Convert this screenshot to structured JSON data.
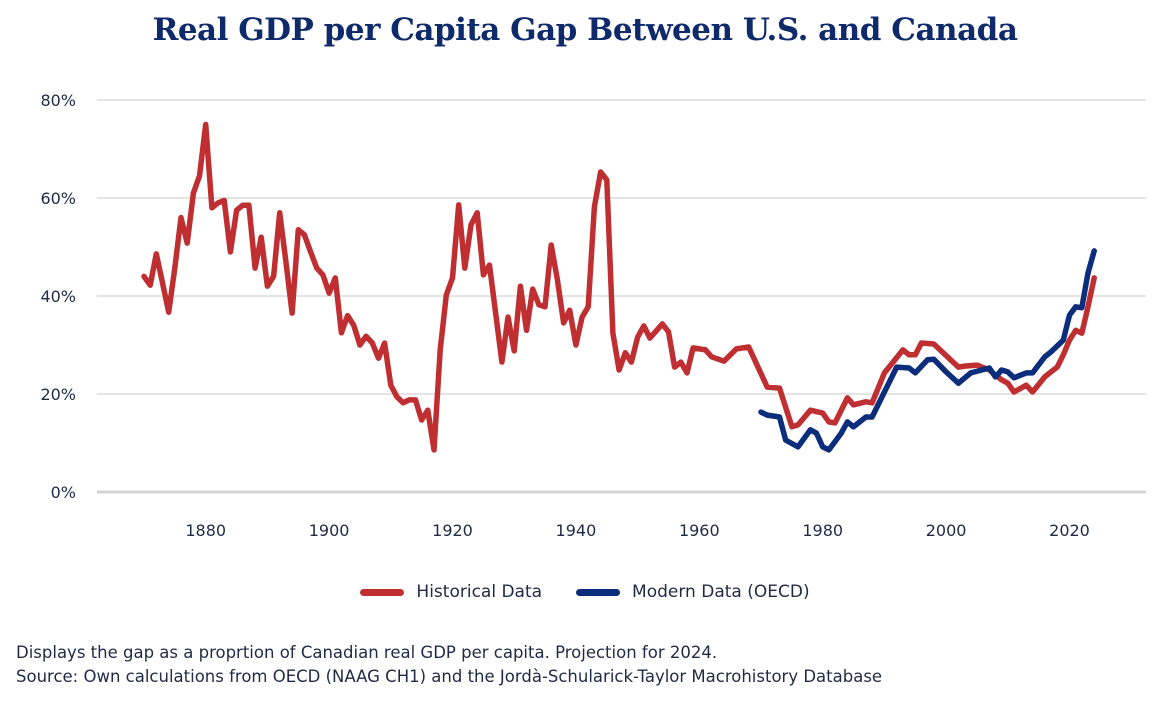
{
  "chart_data": {
    "type": "line",
    "title": "Real GDP per Capita Gap Between U.S. and Canada",
    "xlabel": "",
    "ylabel": "",
    "xlim": [
      1866,
      2032
    ],
    "ylim": [
      0,
      80
    ],
    "x_ticks": [
      "1880",
      "1900",
      "1920",
      "1940",
      "1960",
      "1980",
      "2000",
      "2020"
    ],
    "x_tick_values": [
      1880,
      1900,
      1920,
      1940,
      1960,
      1980,
      2000,
      2020
    ],
    "y_ticks": [
      "0%",
      "20%",
      "40%",
      "60%",
      "80%"
    ],
    "y_tick_values": [
      0,
      20,
      40,
      60,
      80
    ],
    "grid": "horizontal",
    "legend_position": "bottom-center",
    "series": [
      {
        "name": "Historical Data",
        "color": "#bf2f32",
        "x": [
          1870,
          1871,
          1872,
          1873,
          1874,
          1875,
          1876,
          1877,
          1878,
          1879,
          1880,
          1881,
          1882,
          1883,
          1884,
          1885,
          1886,
          1887,
          1888,
          1889,
          1890,
          1891,
          1892,
          1893,
          1894,
          1895,
          1896,
          1897,
          1898,
          1899,
          1900,
          1901,
          1902,
          1903,
          1904,
          1905,
          1906,
          1907,
          1908,
          1909,
          1910,
          1911,
          1912,
          1913,
          1914,
          1915,
          1916,
          1917,
          1918,
          1919,
          1920,
          1921,
          1922,
          1923,
          1924,
          1925,
          1926,
          1928,
          1929,
          1930,
          1931,
          1932,
          1933,
          1934,
          1935,
          1936,
          1937,
          1938,
          1939,
          1940,
          1941,
          1942,
          1943,
          1944,
          1945,
          1946,
          1947,
          1948,
          1949,
          1950,
          1951,
          1952,
          1954,
          1955,
          1956,
          1957,
          1958,
          1959,
          1961,
          1962,
          1964,
          1966,
          1968,
          1971,
          1973,
          1975,
          1976,
          1978,
          1980,
          1981,
          1982,
          1984,
          1985,
          1987,
          1988,
          1990,
          1993,
          1994,
          1995,
          1996,
          1998,
          2002,
          2003,
          2005,
          2007,
          2009,
          2010,
          2011,
          2013,
          2014,
          2016,
          2017,
          2018,
          2019,
          2020,
          2021,
          2022,
          2023,
          2024
        ],
        "y": [
          44,
          42.2,
          48.6,
          42.7,
          36.7,
          45.7,
          56,
          50.8,
          61,
          64.5,
          75,
          58,
          59,
          59.5,
          49,
          57.5,
          58.5,
          58.5,
          45.7,
          52,
          42,
          44,
          57,
          47,
          36.5,
          53.5,
          52.5,
          49,
          45.7,
          44.3,
          40.6,
          43.7,
          32.5,
          36,
          34,
          30,
          31.8,
          30.4,
          27.3,
          30.4,
          21.8,
          19.4,
          18.2,
          18.8,
          18.8,
          14.7,
          16.7,
          8.6,
          29,
          40.2,
          43.7,
          58.6,
          45.7,
          54.5,
          57,
          44.3,
          46.3,
          26.5,
          35.7,
          28.8,
          42,
          33,
          41.4,
          38.2,
          37.8,
          50.4,
          43.3,
          34.5,
          37.1,
          30,
          35.7,
          37.8,
          58.2,
          65.3,
          63.7,
          32.4,
          24.9,
          28.4,
          26.5,
          31.6,
          33.9,
          31.4,
          34.3,
          32.7,
          25.5,
          26.5,
          24.3,
          29.4,
          29,
          27.6,
          26.7,
          29.2,
          29.6,
          21.4,
          21.2,
          13.3,
          13.7,
          16.7,
          16.1,
          14.3,
          14.1,
          19.2,
          17.8,
          18.4,
          18.2,
          24.3,
          29,
          28,
          28,
          30.4,
          30.2,
          25.5,
          25.7,
          25.9,
          24.9,
          22.9,
          22.2,
          20.4,
          21.8,
          20.4,
          23.5,
          24.5,
          25.5,
          28,
          31,
          33,
          32.4,
          37.8,
          43.7
        ]
      },
      {
        "name": "Modern Data (OECD)",
        "color": "#0c2d7c",
        "x": [
          1970,
          1971,
          1973,
          1974,
          1976,
          1978,
          1979,
          1980,
          1981,
          1983,
          1984,
          1985,
          1987,
          1988,
          1990,
          1992,
          1994,
          1995,
          1997,
          1998,
          2000,
          2002,
          2004,
          2007,
          2008,
          2009,
          2010,
          2011,
          2013,
          2014,
          2016,
          2017,
          2019,
          2020,
          2021,
          2022,
          2023,
          2024
        ],
        "y": [
          16.3,
          15.7,
          15.3,
          10.6,
          9.2,
          12.7,
          12,
          9.2,
          8.6,
          12,
          14.3,
          13.3,
          15.3,
          15.3,
          20.4,
          25.5,
          25.3,
          24.3,
          27,
          27.1,
          24.5,
          22.2,
          24.3,
          25.3,
          23.5,
          24.9,
          24.5,
          23.3,
          24.3,
          24.3,
          27.6,
          28.6,
          31,
          36.1,
          37.8,
          37.6,
          44.7,
          49.2
        ]
      }
    ]
  },
  "notes": {
    "line1": "Displays the gap as a proprtion of Canadian real GDP per capita. Projection for 2024.",
    "line2": "Source: Own calculations from OECD (NAAG CH1) and the Jordà-Schularick-Taylor Macrohistory Database"
  }
}
